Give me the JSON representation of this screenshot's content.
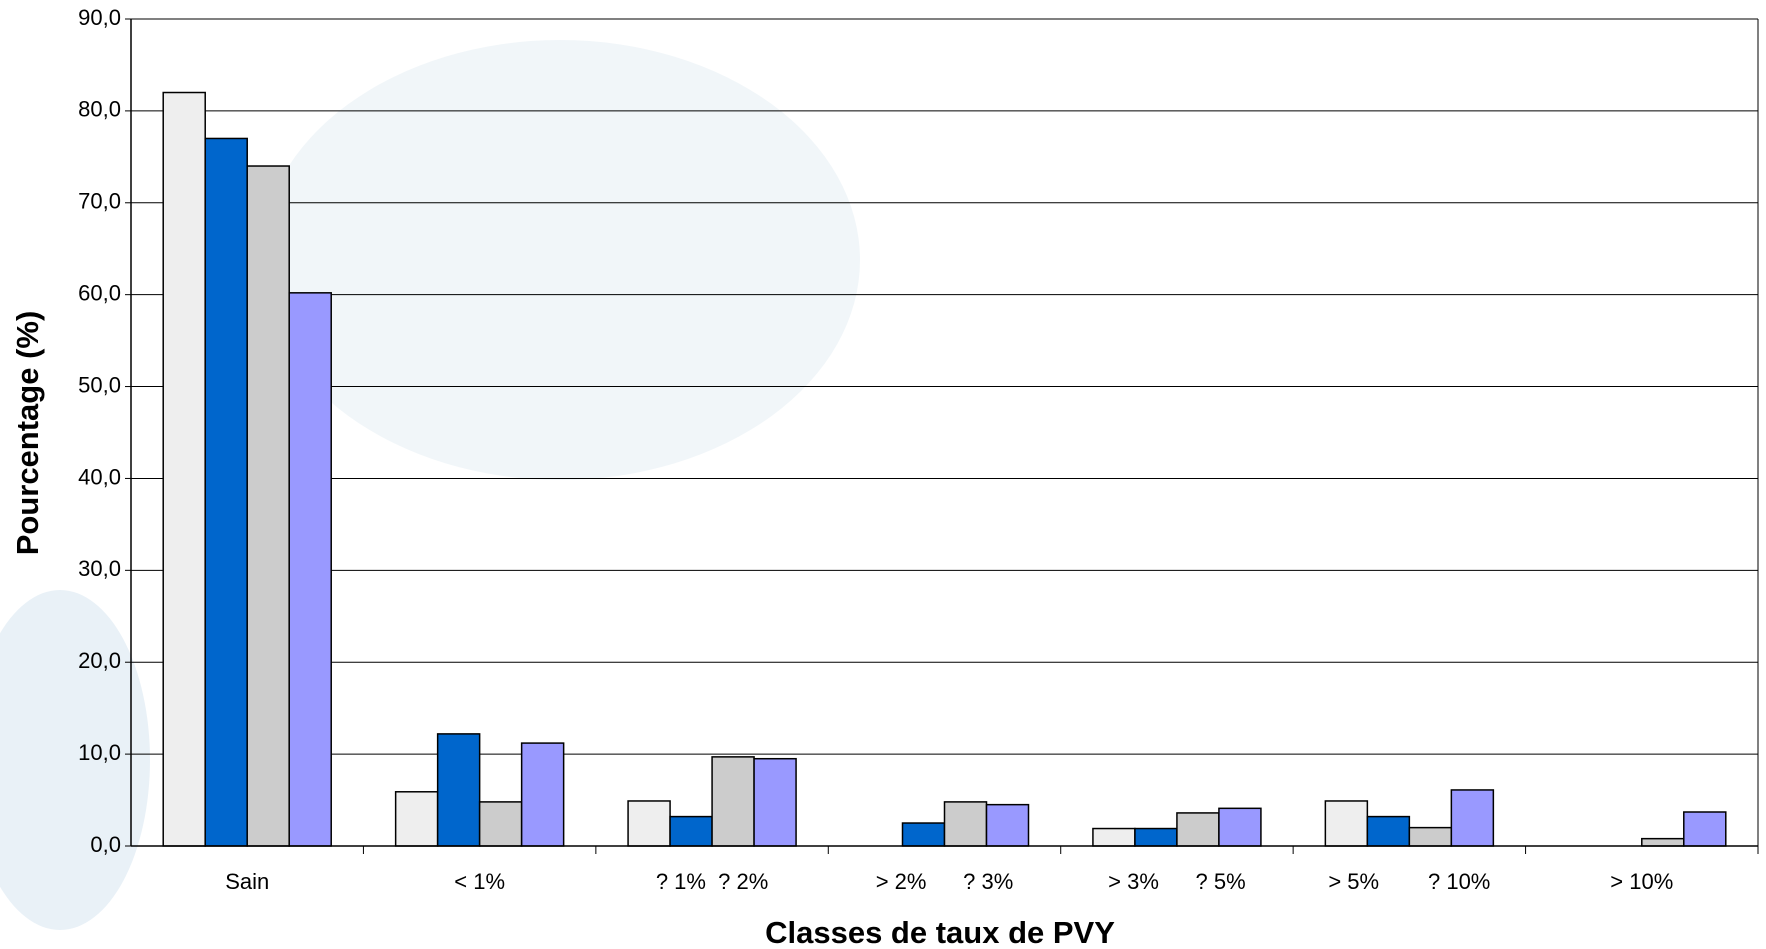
{
  "chart_data": {
    "type": "bar",
    "y_label": "Pourcentage (%)",
    "x_label": "Classes de taux de PVY",
    "categories": [
      "Sain",
      "< 1%",
      "? 1%  ? 2%",
      "> 2%      ? 3%",
      "> 3%      ? 5%",
      "> 5%        ? 10%",
      "> 10%"
    ],
    "series": [
      {
        "color": "#eeeeee",
        "values": [
          82,
          5.9,
          4.9,
          0,
          1.9,
          4.9,
          0
        ]
      },
      {
        "color": "#0066cc",
        "values": [
          77,
          12.2,
          3.2,
          2.5,
          1.9,
          3.2,
          0
        ]
      },
      {
        "color": "#cccccc",
        "values": [
          74,
          4.8,
          9.7,
          4.8,
          3.6,
          2.0,
          0.8
        ]
      },
      {
        "color": "#9999ff",
        "values": [
          60.2,
          11.2,
          9.5,
          4.5,
          4.1,
          6.1,
          3.7
        ]
      }
    ],
    "ylim": [
      0,
      90
    ],
    "yticks": [
      {
        "value": 0,
        "label": "0,0"
      },
      {
        "value": 10,
        "label": "10,0"
      },
      {
        "value": 20,
        "label": "20,0"
      },
      {
        "value": 30,
        "label": "30,0"
      },
      {
        "value": 40,
        "label": "40,0"
      },
      {
        "value": 50,
        "label": "50,0"
      },
      {
        "value": 60,
        "label": "60,0"
      },
      {
        "value": 70,
        "label": "70,0"
      },
      {
        "value": 80,
        "label": "80,0"
      },
      {
        "value": 90,
        "label": "90,0"
      }
    ],
    "grid": true
  }
}
